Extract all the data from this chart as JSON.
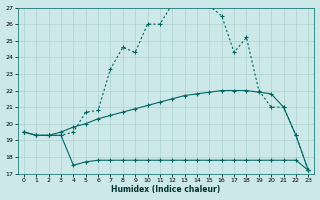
{
  "xlabel": "Humidex (Indice chaleur)",
  "bg_color": "#cce8e8",
  "grid_color": "#b0d0d0",
  "line_color": "#006666",
  "xlim": [
    -0.5,
    23.5
  ],
  "ylim": [
    17,
    27
  ],
  "x_ticks": [
    0,
    1,
    2,
    3,
    4,
    5,
    6,
    7,
    8,
    9,
    10,
    11,
    12,
    13,
    14,
    15,
    16,
    17,
    18,
    19,
    20,
    21,
    22,
    23
  ],
  "y_ticks": [
    17,
    18,
    19,
    20,
    21,
    22,
    23,
    24,
    25,
    26,
    27
  ],
  "series_dotted_x": [
    0,
    1,
    2,
    3,
    4,
    5,
    6,
    7,
    8,
    9,
    10,
    11,
    12,
    13,
    14,
    15,
    16,
    17,
    18,
    19,
    20,
    21,
    22,
    23
  ],
  "series_dotted_y": [
    19.5,
    19.3,
    19.3,
    19.3,
    19.5,
    20.7,
    20.8,
    23.3,
    24.6,
    24.3,
    26.0,
    26.0,
    27.2,
    27.2,
    27.2,
    27.1,
    26.5,
    24.3,
    25.2,
    22.0,
    21.0,
    21.0,
    19.3,
    17.2
  ],
  "series_mid_x": [
    0,
    1,
    2,
    3,
    4,
    5,
    6,
    7,
    8,
    9,
    10,
    11,
    12,
    13,
    14,
    15,
    16,
    17,
    18,
    19,
    20,
    21,
    22,
    23
  ],
  "series_mid_y": [
    19.5,
    19.3,
    19.3,
    19.5,
    19.8,
    20.0,
    20.3,
    20.5,
    20.7,
    20.9,
    21.1,
    21.3,
    21.5,
    21.7,
    21.8,
    21.9,
    22.0,
    22.0,
    22.0,
    21.9,
    21.8,
    21.0,
    19.3,
    17.2
  ],
  "series_bot_x": [
    0,
    1,
    2,
    3,
    4,
    5,
    6,
    7,
    8,
    9,
    10,
    11,
    12,
    13,
    14,
    15,
    16,
    17,
    18,
    19,
    20,
    21,
    22,
    23
  ],
  "series_bot_y": [
    19.5,
    19.3,
    19.3,
    19.3,
    17.5,
    17.7,
    17.8,
    17.8,
    17.8,
    17.8,
    17.8,
    17.8,
    17.8,
    17.8,
    17.8,
    17.8,
    17.8,
    17.8,
    17.8,
    17.8,
    17.8,
    17.8,
    17.8,
    17.2
  ]
}
